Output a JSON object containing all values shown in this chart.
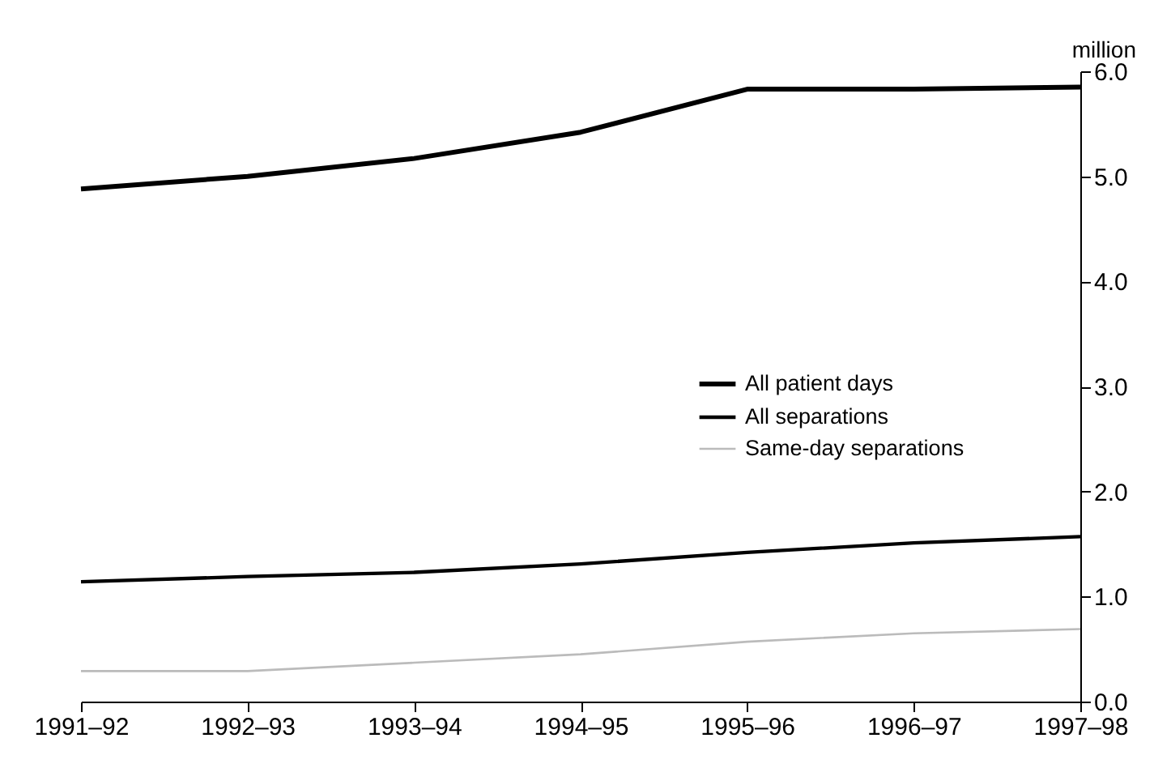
{
  "chart_data": {
    "type": "line",
    "ylabel": "million",
    "categories": [
      "1991–92",
      "1992–93",
      "1993–94",
      "1994–95",
      "1995–96",
      "1996–97",
      "1997–98"
    ],
    "series": [
      {
        "name": "All patient days",
        "color": "#000000",
        "values": [
          4.88,
          5.0,
          5.17,
          5.42,
          5.83,
          5.83,
          5.85
        ]
      },
      {
        "name": "All separations",
        "color": "#000000",
        "values": [
          1.14,
          1.19,
          1.23,
          1.31,
          1.42,
          1.51,
          1.57
        ]
      },
      {
        "name": "Same-day separations",
        "color": "#bbbbbb",
        "values": [
          0.29,
          0.29,
          0.37,
          0.45,
          0.57,
          0.65,
          0.69
        ]
      }
    ],
    "ylim": [
      0,
      6
    ],
    "yticks": [
      {
        "value": 0,
        "label": "0.0"
      },
      {
        "value": 1,
        "label": "1.0"
      },
      {
        "value": 2,
        "label": "2.0"
      },
      {
        "value": 3,
        "label": "3.0"
      },
      {
        "value": 4,
        "label": "4.0"
      },
      {
        "value": 5,
        "label": "5.0"
      },
      {
        "value": 6,
        "label": "6.0"
      }
    ],
    "grid": false,
    "legend": "right",
    "marker": "none",
    "line_style": "solid"
  }
}
